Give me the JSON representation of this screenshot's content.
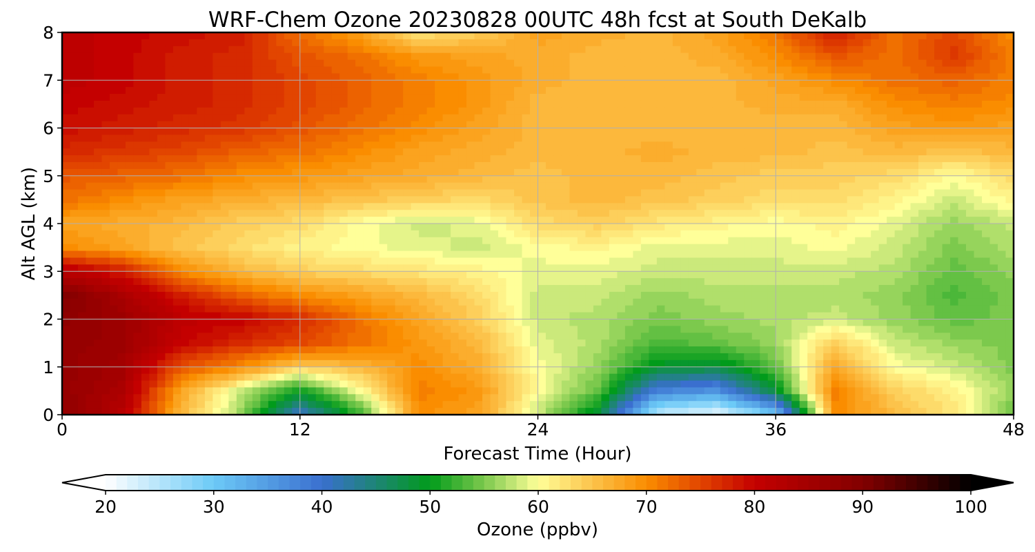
{
  "chart_data": {
    "type": "heatmap",
    "title": "WRF-Chem Ozone  20230828 00UTC 48h fcst at South DeKalb",
    "xlabel": "Forecast Time (Hour)",
    "ylabel": "Alt AGL (km)",
    "xlim": [
      0,
      48
    ],
    "ylim": [
      0,
      8
    ],
    "x_ticks": [
      0,
      12,
      24,
      36,
      48
    ],
    "y_ticks": [
      0,
      1,
      2,
      3,
      4,
      5,
      6,
      7,
      8
    ],
    "grid": true,
    "x_hours": [
      0,
      3,
      6,
      9,
      12,
      15,
      18,
      21,
      24,
      27,
      30,
      33,
      36,
      39,
      42,
      45,
      48
    ],
    "y_km": [
      0,
      0.5,
      1,
      1.5,
      2,
      2.5,
      3,
      3.5,
      4,
      4.5,
      5,
      5.5,
      6,
      6.5,
      7,
      7.5,
      8
    ],
    "ozone_ppbv": [
      [
        88,
        82,
        66,
        56,
        40,
        52,
        70,
        68,
        58,
        48,
        24,
        21,
        30,
        70,
        66,
        62,
        54
      ],
      [
        87,
        84,
        68,
        58,
        50,
        60,
        71,
        69,
        60,
        54,
        38,
        36,
        48,
        71,
        64,
        61,
        56
      ],
      [
        87,
        85,
        74,
        70,
        64,
        66,
        70,
        67,
        60,
        56,
        49,
        48,
        54,
        68,
        60,
        58,
        55
      ],
      [
        87,
        86,
        80,
        77,
        75,
        72,
        69,
        66,
        59,
        57,
        53,
        54,
        56,
        64,
        58,
        56,
        55
      ],
      [
        88,
        86,
        81,
        80,
        77,
        72,
        68,
        64,
        58,
        57,
        55,
        56,
        57,
        58,
        56,
        54,
        55
      ],
      [
        90,
        84,
        78,
        73,
        70,
        68,
        66,
        63,
        58,
        58,
        56,
        57,
        57,
        57,
        56,
        53,
        55
      ],
      [
        82,
        78,
        70,
        66,
        64,
        63,
        62,
        61,
        59,
        59,
        58,
        58,
        58,
        58,
        57,
        54,
        56
      ],
      [
        70,
        68,
        65,
        63,
        61,
        60,
        59,
        58,
        60,
        61,
        59,
        59,
        59,
        60,
        58,
        55,
        57
      ],
      [
        68,
        67,
        66,
        64,
        63,
        60,
        58,
        59,
        63,
        64,
        62,
        61,
        60,
        61,
        59,
        56,
        58
      ],
      [
        72,
        70,
        68,
        67,
        66,
        65,
        64,
        63,
        65,
        66,
        65,
        64,
        63,
        63,
        61,
        58,
        61
      ],
      [
        74,
        73,
        72,
        70,
        69,
        68,
        67,
        66,
        65,
        66,
        66,
        65,
        64,
        64,
        63,
        60,
        63
      ],
      [
        77,
        76,
        75,
        73,
        72,
        70,
        68,
        67,
        66,
        66,
        67,
        66,
        66,
        65,
        66,
        65,
        66
      ],
      [
        79,
        78,
        77,
        76,
        74,
        72,
        70,
        68,
        66,
        66,
        66,
        66,
        66,
        66,
        68,
        69,
        68
      ],
      [
        80,
        79,
        78,
        77,
        75,
        73,
        71,
        69,
        66,
        66,
        66,
        66,
        67,
        67,
        70,
        71,
        70
      ],
      [
        81,
        80,
        78,
        77,
        75,
        73,
        71,
        69,
        67,
        66,
        66,
        66,
        68,
        70,
        72,
        73,
        71
      ],
      [
        81,
        80,
        78,
        77,
        74,
        72,
        69,
        68,
        67,
        66,
        66,
        67,
        70,
        74,
        72,
        76,
        71
      ],
      [
        81,
        80,
        79,
        78,
        72,
        68,
        62,
        64,
        68,
        67,
        66,
        68,
        72,
        78,
        72,
        75,
        70
      ]
    ],
    "colorbar": {
      "label": "Ozone  (ppbv)",
      "min": 20,
      "max": 100,
      "ticks": [
        20,
        30,
        40,
        50,
        60,
        70,
        80,
        90,
        100
      ],
      "extend": "both",
      "orientation": "horizontal",
      "placement": "bottom",
      "color_stops": [
        [
          20,
          "#ffffff"
        ],
        [
          30,
          "#6ccaf7"
        ],
        [
          40,
          "#3a6fcf"
        ],
        [
          50,
          "#019b1b"
        ],
        [
          55,
          "#7cc94d"
        ],
        [
          60,
          "#ffff99"
        ],
        [
          65,
          "#fcc34b"
        ],
        [
          70,
          "#fa8d00"
        ],
        [
          75,
          "#e24500"
        ],
        [
          80,
          "#c40000"
        ],
        [
          90,
          "#820000"
        ],
        [
          100,
          "#000000"
        ]
      ]
    }
  }
}
